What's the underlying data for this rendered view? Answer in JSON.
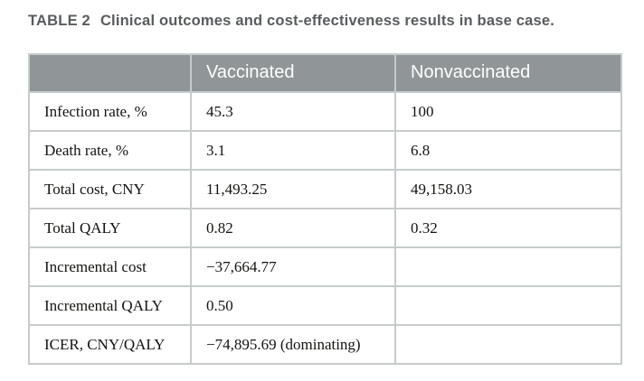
{
  "caption": {
    "label": "TABLE 2",
    "text": "Clinical outcomes and cost-effectiveness results in base case."
  },
  "table": {
    "columns": [
      "Vaccinated",
      "Nonvaccinated"
    ],
    "rows": [
      {
        "label": "Infection rate, %",
        "vaccinated": "45.3",
        "nonvaccinated": "100"
      },
      {
        "label": "Death rate, %",
        "vaccinated": "3.1",
        "nonvaccinated": "6.8"
      },
      {
        "label": "Total cost, CNY",
        "vaccinated": "11,493.25",
        "nonvaccinated": "49,158.03"
      },
      {
        "label": "Total QALY",
        "vaccinated": "0.82",
        "nonvaccinated": "0.32"
      },
      {
        "label": "Incremental cost",
        "vaccinated": "−37,664.77",
        "nonvaccinated": ""
      },
      {
        "label": "Incremental QALY",
        "vaccinated": "0.50",
        "nonvaccinated": ""
      },
      {
        "label": "ICER, CNY/QALY",
        "vaccinated": "−74,895.69 (dominating)",
        "nonvaccinated": ""
      }
    ]
  },
  "theme": {
    "page_bg": "#ffffff",
    "title_text": "#595c5e",
    "header_bg": "#909597",
    "header_divider": "#c6cbcc",
    "header_text": "#ffffff",
    "border": "#c7cbcc",
    "body_text": "#151310"
  }
}
